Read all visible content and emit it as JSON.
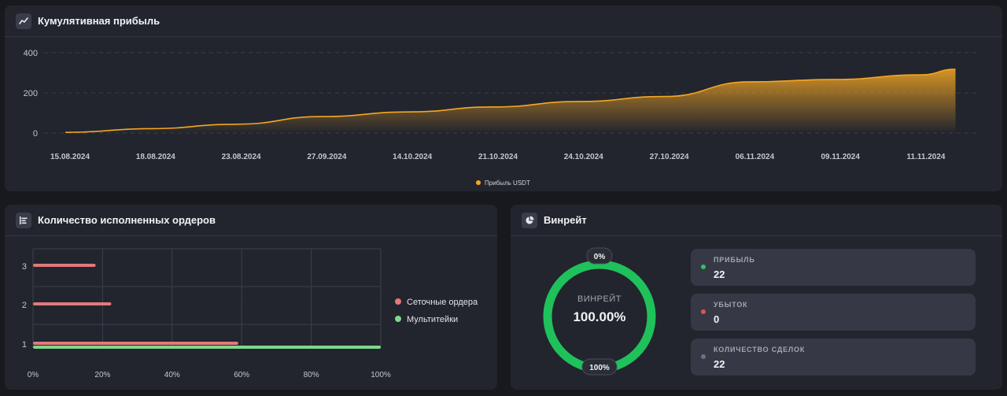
{
  "profit_card": {
    "title": "Кумулятивная прибыль",
    "icon": "trend-line-icon",
    "chart_data": {
      "type": "area",
      "x": [
        "15.08.2024",
        "18.08.2024",
        "23.08.2024",
        "27.09.2024",
        "14.10.2024",
        "21.10.2024",
        "24.10.2024",
        "27.10.2024",
        "06.11.2024",
        "09.11.2024",
        "11.11.2024"
      ],
      "series": [
        {
          "name": "Прибыль USDT",
          "x": [
            0,
            1,
            2,
            3,
            4,
            5,
            6,
            7,
            8,
            9,
            10,
            10.4
          ],
          "values": [
            3,
            22,
            44,
            82,
            105,
            130,
            157,
            182,
            255,
            267,
            290,
            318
          ]
        }
      ],
      "yticks": [
        0,
        200,
        400
      ],
      "ylim": [
        0,
        400
      ],
      "grid": true,
      "legend_position": "bottom",
      "color": "#f5a623"
    }
  },
  "orders_card": {
    "title": "Количество исполненных ордеров",
    "icon": "bar-list-icon",
    "chart_data": {
      "type": "bar",
      "orientation": "horizontal",
      "categories": [
        "1",
        "2",
        "3"
      ],
      "series": [
        {
          "name": "Сеточные ордера",
          "values": [
            59,
            22.5,
            18
          ],
          "color": "#e07a7c"
        },
        {
          "name": "Мультитейки",
          "values": [
            100,
            0,
            0
          ],
          "color": "#7dd88b"
        }
      ],
      "xticks": [
        "0%",
        "20%",
        "40%",
        "60%",
        "80%",
        "100%"
      ],
      "xlim": [
        0,
        100
      ],
      "grid": true,
      "legend_position": "right"
    }
  },
  "winrate_card": {
    "title": "Винрейт",
    "icon": "pie-chart-icon",
    "donut": {
      "label": "ВИНРЕЙТ",
      "value": "100.00%",
      "top_badge": "0%",
      "bottom_badge": "100%",
      "fraction": 1.0,
      "color": "#1fc15b"
    },
    "stats": [
      {
        "label": "ПРИБЫЛЬ",
        "value": "22",
        "color": "#33c35c"
      },
      {
        "label": "УБЫТОК",
        "value": "0",
        "color": "#e0524f"
      },
      {
        "label": "КОЛИЧЕСТВО СДЕЛОК",
        "value": "22",
        "color": "#6f7280"
      }
    ]
  }
}
